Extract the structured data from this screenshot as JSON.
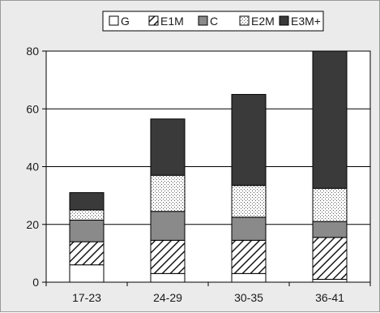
{
  "chart_data": {
    "type": "bar",
    "stacked": true,
    "categories": [
      "17-23",
      "24-29",
      "30-35",
      "36-41"
    ],
    "series": [
      {
        "name": "G",
        "values": [
          6,
          3,
          3,
          1
        ],
        "fill": "white"
      },
      {
        "name": "E1M",
        "values": [
          8,
          11.5,
          11.5,
          14.5
        ],
        "fill": "diagonal-hatch"
      },
      {
        "name": "C",
        "values": [
          7.5,
          10,
          8,
          5.5
        ],
        "fill": "gray"
      },
      {
        "name": "E2M",
        "values": [
          3.5,
          12.5,
          11,
          11.5
        ],
        "fill": "dotted"
      },
      {
        "name": "E3M+",
        "values": [
          6,
          19.5,
          31.5,
          47.5
        ],
        "fill": "dark"
      }
    ],
    "title": "",
    "xlabel": "",
    "ylabel": "",
    "ylim": [
      0,
      80
    ],
    "yticks": [
      0,
      20,
      40,
      60,
      80
    ],
    "grid": true,
    "legend": "top-center"
  },
  "colors": {
    "background": "#ebebeb",
    "plot_background": "#ffffff",
    "gray_fill": "#8a8a8a",
    "dark_fill": "#3a3a3a",
    "grid": "#000000"
  }
}
